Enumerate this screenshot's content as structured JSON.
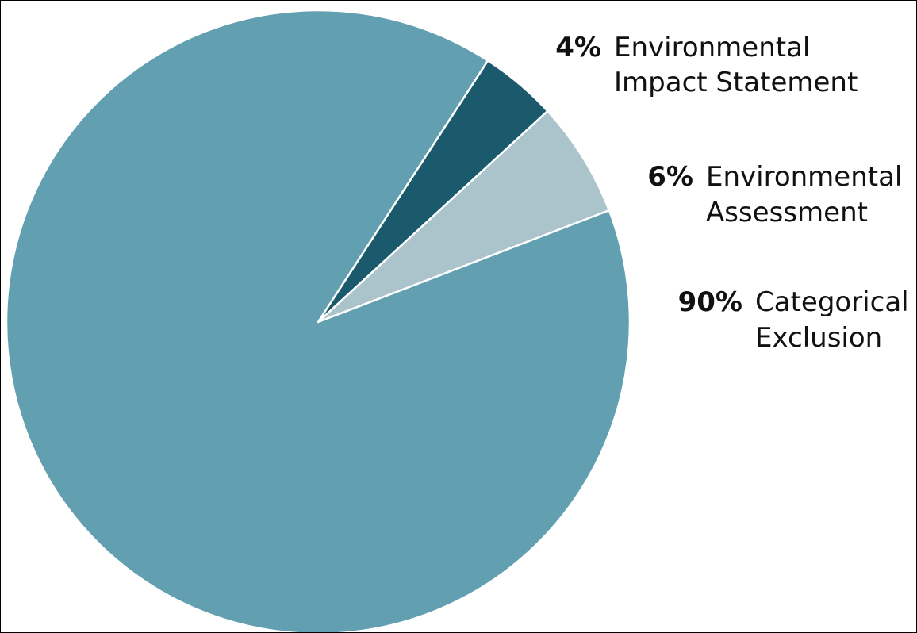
{
  "chart_data": {
    "type": "pie",
    "title": "",
    "slices": [
      {
        "key": "eis",
        "percent_label": "4%",
        "name_lines": [
          "Environmental",
          "Impact Statement"
        ],
        "value": 4,
        "color": "#1b5a6d"
      },
      {
        "key": "ea",
        "percent_label": "6%",
        "name_lines": [
          "Environmental",
          "Assessment"
        ],
        "value": 6,
        "color": "#abc3cb"
      },
      {
        "key": "ce",
        "percent_label": "90%",
        "name_lines": [
          "Categorical",
          "Exclusion"
        ],
        "value": 90,
        "color": "#62a0b1"
      }
    ],
    "legend_position": "right",
    "slice_border_color": "#ffffff"
  }
}
